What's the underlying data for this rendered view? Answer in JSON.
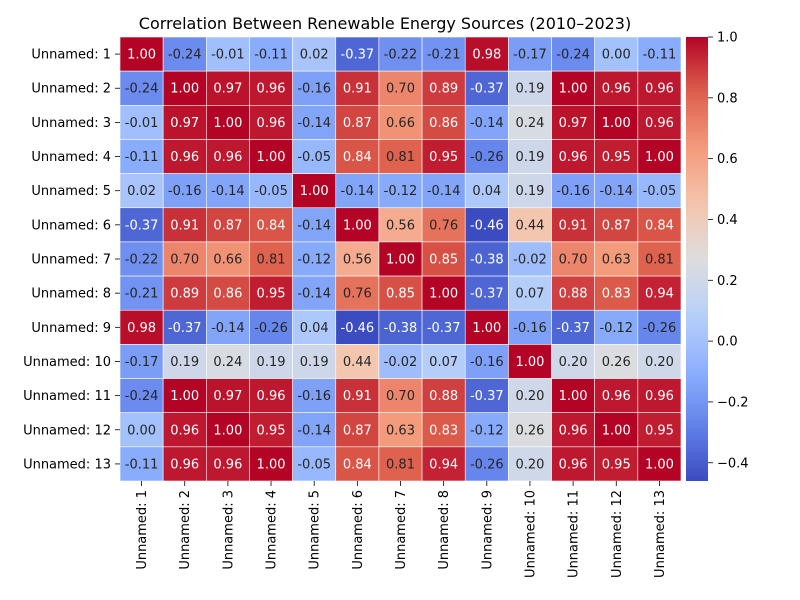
{
  "chart_data": {
    "type": "heatmap",
    "title": "Correlation Between Renewable Energy Sources (2010–2023)",
    "xlabel": "",
    "ylabel": "",
    "labels": [
      "Unnamed: 1",
      "Unnamed: 2",
      "Unnamed: 3",
      "Unnamed: 4",
      "Unnamed: 5",
      "Unnamed: 6",
      "Unnamed: 7",
      "Unnamed: 8",
      "Unnamed: 9",
      "Unnamed: 10",
      "Unnamed: 11",
      "Unnamed: 12",
      "Unnamed: 13"
    ],
    "matrix": [
      [
        1.0,
        -0.24,
        -0.01,
        -0.11,
        0.02,
        -0.37,
        -0.22,
        -0.21,
        0.98,
        -0.17,
        -0.24,
        0.0,
        -0.11
      ],
      [
        -0.24,
        1.0,
        0.97,
        0.96,
        -0.16,
        0.91,
        0.7,
        0.89,
        -0.37,
        0.19,
        1.0,
        0.96,
        0.96
      ],
      [
        -0.01,
        0.97,
        1.0,
        0.96,
        -0.14,
        0.87,
        0.66,
        0.86,
        -0.14,
        0.24,
        0.97,
        1.0,
        0.96
      ],
      [
        -0.11,
        0.96,
        0.96,
        1.0,
        -0.05,
        0.84,
        0.81,
        0.95,
        -0.26,
        0.19,
        0.96,
        0.95,
        1.0
      ],
      [
        0.02,
        -0.16,
        -0.14,
        -0.05,
        1.0,
        -0.14,
        -0.12,
        -0.14,
        0.04,
        0.19,
        -0.16,
        -0.14,
        -0.05
      ],
      [
        -0.37,
        0.91,
        0.87,
        0.84,
        -0.14,
        1.0,
        0.56,
        0.76,
        -0.46,
        0.44,
        0.91,
        0.87,
        0.84
      ],
      [
        -0.22,
        0.7,
        0.66,
        0.81,
        -0.12,
        0.56,
        1.0,
        0.85,
        -0.38,
        -0.02,
        0.7,
        0.63,
        0.81
      ],
      [
        -0.21,
        0.89,
        0.86,
        0.95,
        -0.14,
        0.76,
        0.85,
        1.0,
        -0.37,
        0.07,
        0.88,
        0.83,
        0.94
      ],
      [
        0.98,
        -0.37,
        -0.14,
        -0.26,
        0.04,
        -0.46,
        -0.38,
        -0.37,
        1.0,
        -0.16,
        -0.37,
        -0.12,
        -0.26
      ],
      [
        -0.17,
        0.19,
        0.24,
        0.19,
        0.19,
        0.44,
        -0.02,
        0.07,
        -0.16,
        1.0,
        0.2,
        0.26,
        0.2
      ],
      [
        -0.24,
        1.0,
        0.97,
        0.96,
        -0.16,
        0.91,
        0.7,
        0.88,
        -0.37,
        0.2,
        1.0,
        0.96,
        0.96
      ],
      [
        0.0,
        0.96,
        1.0,
        0.95,
        -0.14,
        0.87,
        0.63,
        0.83,
        -0.12,
        0.26,
        0.96,
        1.0,
        0.95
      ],
      [
        -0.11,
        0.96,
        0.96,
        1.0,
        -0.05,
        0.84,
        0.81,
        0.94,
        -0.26,
        0.2,
        0.96,
        0.95,
        1.0
      ]
    ],
    "colorbar": {
      "colormap": "coolwarm",
      "vmin": -0.46,
      "vmax": 1.0,
      "ticks": [
        -0.4,
        -0.2,
        0.0,
        0.2,
        0.4,
        0.6,
        0.8,
        1.0
      ],
      "tick_labels": [
        "−0.4",
        "−0.2",
        "0.0",
        "0.2",
        "0.4",
        "0.6",
        "0.8",
        "1.0"
      ]
    },
    "annotation_format": "2 decimals",
    "grid": false,
    "cell_borders": "white"
  }
}
